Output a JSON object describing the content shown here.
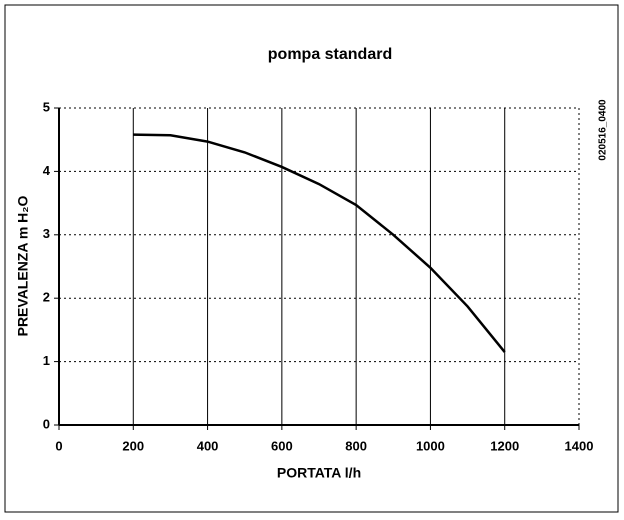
{
  "chart_data": {
    "type": "line",
    "title": "pompa standard",
    "xlabel": "PORTATA l/h",
    "ylabel": "PREVALENZA m H₂O",
    "annotation": "020516_0400",
    "x": [
      200,
      300,
      400,
      500,
      600,
      700,
      800,
      900,
      1000,
      1100,
      1200
    ],
    "series": [
      {
        "name": "pompa standard",
        "color": "#000000",
        "values": [
          4.58,
          4.57,
          4.47,
          4.3,
          4.07,
          3.8,
          3.47,
          3.0,
          2.48,
          1.87,
          1.15
        ]
      }
    ],
    "xlim": [
      0,
      1400
    ],
    "xticks": [
      0,
      200,
      400,
      600,
      800,
      1000,
      1200,
      1400
    ],
    "ylim": [
      0,
      5
    ],
    "yticks": [
      0,
      1,
      2,
      3,
      4,
      5
    ],
    "grid": true
  }
}
